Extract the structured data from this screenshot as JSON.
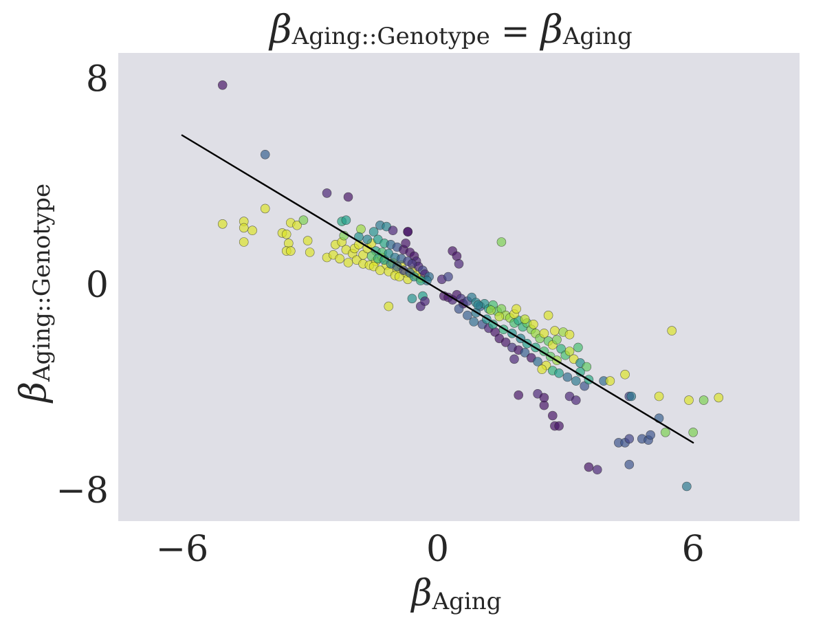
{
  "chart_data": {
    "type": "scatter",
    "title": {
      "lhs_symbol": "β",
      "lhs_sub": "Aging::Genotype",
      "eq": " = ",
      "rhs_symbol": "β",
      "rhs_sub": "Aging"
    },
    "xlabel": {
      "symbol": "β",
      "sub": "Aging"
    },
    "ylabel": {
      "symbol": "β",
      "sub": "Aging::Genotype"
    },
    "xlim": [
      -7.5,
      8.5
    ],
    "ylim": [
      -9.2,
      9.0
    ],
    "xticks": [
      -6,
      0,
      6
    ],
    "yticks": [
      -8,
      0,
      8
    ],
    "xtick_labels": [
      "−6",
      "0",
      "6"
    ],
    "ytick_labels": [
      "−8",
      "0",
      "8"
    ],
    "grid": false,
    "background": "#dfdfe6",
    "colormap": "viridis",
    "fit_line": {
      "x": [
        -6.0,
        6.0
      ],
      "y": [
        5.8,
        -6.15
      ],
      "color": "#000000"
    },
    "points": [
      [
        -5.05,
        7.75,
        0.05
      ],
      [
        -4.05,
        5.05,
        0.3
      ],
      [
        -5.05,
        2.35,
        0.95
      ],
      [
        -4.05,
        2.95,
        0.95
      ],
      [
        -4.55,
        2.45,
        0.95
      ],
      [
        -4.55,
        2.2,
        0.95
      ],
      [
        -4.35,
        2.1,
        0.95
      ],
      [
        -4.55,
        1.65,
        0.95
      ],
      [
        -3.45,
        2.4,
        0.95
      ],
      [
        -3.3,
        2.3,
        0.95
      ],
      [
        -3.15,
        2.5,
        0.8
      ],
      [
        -3.65,
        2.0,
        0.95
      ],
      [
        -3.55,
        1.95,
        0.95
      ],
      [
        -3.5,
        1.6,
        0.95
      ],
      [
        -3.55,
        1.3,
        0.95
      ],
      [
        -3.45,
        1.3,
        0.95
      ],
      [
        -3.05,
        1.7,
        0.95
      ],
      [
        -3.0,
        1.25,
        0.95
      ],
      [
        -2.6,
        1.05,
        0.95
      ],
      [
        -2.45,
        1.15,
        0.95
      ],
      [
        -2.3,
        1.0,
        0.95
      ],
      [
        -2.4,
        1.55,
        0.95
      ],
      [
        -2.25,
        1.65,
        0.95
      ],
      [
        -2.15,
        1.35,
        0.95
      ],
      [
        -2.0,
        1.2,
        0.95
      ],
      [
        -1.95,
        1.4,
        0.95
      ],
      [
        -1.85,
        1.55,
        0.95
      ],
      [
        -2.1,
        0.85,
        0.95
      ],
      [
        -1.9,
        0.95,
        0.95
      ],
      [
        -1.75,
        1.15,
        0.95
      ],
      [
        -1.65,
        1.4,
        0.95
      ],
      [
        -1.55,
        1.6,
        0.95
      ],
      [
        -1.75,
        0.8,
        0.95
      ],
      [
        -1.6,
        0.75,
        0.95
      ],
      [
        -1.45,
        0.9,
        0.95
      ],
      [
        -1.3,
        1.05,
        0.95
      ],
      [
        -1.2,
        0.75,
        0.95
      ],
      [
        -1.05,
        0.85,
        0.95
      ],
      [
        -0.95,
        0.6,
        0.95
      ],
      [
        -0.85,
        0.75,
        0.95
      ],
      [
        -0.75,
        0.45,
        0.95
      ],
      [
        -0.6,
        0.55,
        0.95
      ],
      [
        -0.5,
        0.35,
        0.95
      ],
      [
        -0.4,
        0.25,
        0.95
      ],
      [
        -1.5,
        0.7,
        0.95
      ],
      [
        -1.35,
        0.55,
        0.95
      ],
      [
        -1.15,
        0.5,
        0.95
      ],
      [
        -1.0,
        0.35,
        0.95
      ],
      [
        -0.9,
        0.3,
        0.95
      ],
      [
        -0.7,
        0.2,
        0.95
      ],
      [
        -2.25,
        2.45,
        0.6
      ],
      [
        -1.8,
        2.15,
        0.85
      ],
      [
        -1.5,
        2.05,
        0.5
      ],
      [
        -1.35,
        2.3,
        0.4
      ],
      [
        -1.2,
        2.25,
        0.45
      ],
      [
        -1.05,
        2.1,
        0.1
      ],
      [
        -0.7,
        2.05,
        0.05
      ],
      [
        -2.15,
        2.5,
        0.55
      ],
      [
        -2.2,
        1.9,
        0.8
      ],
      [
        -1.85,
        1.85,
        0.5
      ],
      [
        -1.65,
        1.75,
        0.45
      ],
      [
        -1.4,
        1.75,
        0.55
      ],
      [
        -1.25,
        1.6,
        0.6
      ],
      [
        -1.1,
        1.55,
        0.35
      ],
      [
        -0.95,
        1.45,
        0.25
      ],
      [
        -0.8,
        1.35,
        0.05
      ],
      [
        -0.75,
        1.6,
        0.05
      ],
      [
        -0.65,
        1.25,
        0.05
      ],
      [
        -0.55,
        1.1,
        0.05
      ],
      [
        -0.5,
        0.9,
        0.1
      ],
      [
        -0.45,
        0.7,
        0.1
      ],
      [
        -0.35,
        0.55,
        0.2
      ],
      [
        -0.3,
        0.4,
        0.1
      ],
      [
        -0.2,
        0.3,
        0.35
      ],
      [
        -0.25,
        0.15,
        0.4
      ],
      [
        -1.45,
        1.3,
        0.6
      ],
      [
        -1.3,
        1.25,
        0.7
      ],
      [
        -1.15,
        1.2,
        0.5
      ],
      [
        -1.0,
        1.05,
        0.4
      ],
      [
        -0.85,
        1.0,
        0.3
      ],
      [
        -0.7,
        0.9,
        0.2
      ],
      [
        -0.6,
        0.8,
        0.15
      ],
      [
        -1.55,
        1.1,
        0.75
      ],
      [
        -1.4,
        1.0,
        0.65
      ],
      [
        -1.25,
        0.95,
        0.55
      ],
      [
        -1.1,
        0.8,
        0.45
      ],
      [
        -0.95,
        0.7,
        0.3
      ],
      [
        -0.8,
        0.55,
        0.2
      ],
      [
        -0.65,
        0.45,
        0.3
      ],
      [
        -0.55,
        0.3,
        0.5
      ],
      [
        -0.4,
        0.15,
        0.6
      ],
      [
        -2.6,
        3.55,
        0.1
      ],
      [
        -2.1,
        3.4,
        0.05
      ],
      [
        -0.7,
        2.05,
        0.05
      ],
      [
        -1.15,
        -0.85,
        0.95
      ],
      [
        -0.6,
        -0.55,
        0.5
      ],
      [
        -0.35,
        -0.45,
        0.55
      ],
      [
        -0.4,
        -0.85,
        0.1
      ],
      [
        -0.3,
        -0.65,
        0.1
      ],
      [
        0.1,
        0.2,
        0.1
      ],
      [
        0.25,
        0.3,
        0.2
      ],
      [
        0.35,
        1.3,
        0.05
      ],
      [
        0.45,
        1.1,
        0.05
      ],
      [
        0.5,
        0.8,
        0.1
      ],
      [
        1.5,
        1.65,
        0.8
      ],
      [
        0.15,
        -0.45,
        0.05
      ],
      [
        0.25,
        -0.5,
        0.05
      ],
      [
        0.35,
        -0.6,
        0.1
      ],
      [
        0.45,
        -0.4,
        0.05
      ],
      [
        0.55,
        -0.55,
        0.15
      ],
      [
        0.6,
        -0.75,
        0.05
      ],
      [
        0.7,
        -0.65,
        0.2
      ],
      [
        0.8,
        -0.5,
        0.4
      ],
      [
        0.9,
        -0.7,
        0.45
      ],
      [
        1.0,
        -0.85,
        0.3
      ],
      [
        1.1,
        -0.75,
        0.5
      ],
      [
        1.2,
        -0.95,
        0.55
      ],
      [
        1.3,
        -0.8,
        0.7
      ],
      [
        1.4,
        -1.05,
        0.75
      ],
      [
        1.5,
        -0.95,
        0.8
      ],
      [
        1.6,
        -1.2,
        0.85
      ],
      [
        1.7,
        -1.3,
        0.85
      ],
      [
        1.8,
        -1.5,
        0.7
      ],
      [
        1.9,
        -1.4,
        0.6
      ],
      [
        2.0,
        -1.65,
        0.65
      ],
      [
        2.1,
        -1.5,
        0.75
      ],
      [
        2.2,
        -1.75,
        0.8
      ],
      [
        2.3,
        -1.9,
        0.85
      ],
      [
        2.4,
        -2.1,
        0.8
      ],
      [
        2.5,
        -1.9,
        0.95
      ],
      [
        2.6,
        -2.2,
        0.75
      ],
      [
        2.7,
        -2.35,
        0.95
      ],
      [
        2.8,
        -2.15,
        0.8
      ],
      [
        2.9,
        -2.5,
        0.65
      ],
      [
        3.0,
        -2.75,
        0.7
      ],
      [
        3.1,
        -2.6,
        0.9
      ],
      [
        3.2,
        -2.9,
        0.95
      ],
      [
        3.35,
        -3.05,
        0.5
      ],
      [
        3.5,
        -3.2,
        0.75
      ],
      [
        0.5,
        -0.95,
        0.25
      ],
      [
        0.7,
        -1.2,
        0.3
      ],
      [
        0.85,
        -1.45,
        0.35
      ],
      [
        1.05,
        -1.55,
        0.25
      ],
      [
        1.2,
        -1.7,
        0.1
      ],
      [
        1.35,
        -1.85,
        0.05
      ],
      [
        1.45,
        -2.1,
        0.05
      ],
      [
        1.6,
        -2.25,
        0.05
      ],
      [
        1.75,
        -2.45,
        0.15
      ],
      [
        1.9,
        -2.55,
        0.05
      ],
      [
        2.05,
        -2.65,
        0.3
      ],
      [
        2.2,
        -2.85,
        0.05
      ],
      [
        2.35,
        -3.0,
        0.35
      ],
      [
        2.55,
        -3.15,
        0.95
      ],
      [
        2.7,
        -3.35,
        0.65
      ],
      [
        2.85,
        -3.45,
        0.55
      ],
      [
        3.05,
        -3.6,
        0.35
      ],
      [
        3.25,
        -3.75,
        0.4
      ],
      [
        3.45,
        -3.95,
        0.25
      ],
      [
        0.9,
        -1.1,
        0.4
      ],
      [
        1.15,
        -1.35,
        0.5
      ],
      [
        1.3,
        -1.55,
        0.6
      ],
      [
        1.55,
        -1.75,
        0.65
      ],
      [
        1.75,
        -1.9,
        0.5
      ],
      [
        1.95,
        -2.1,
        0.45
      ],
      [
        2.1,
        -2.3,
        0.55
      ],
      [
        2.3,
        -2.45,
        0.6
      ],
      [
        2.5,
        -2.6,
        0.7
      ],
      [
        2.65,
        -2.8,
        0.75
      ],
      [
        2.8,
        -2.95,
        0.85
      ],
      [
        0.95,
        -0.8,
        0.45
      ],
      [
        1.25,
        -1.0,
        0.85
      ],
      [
        1.45,
        -1.25,
        0.9
      ],
      [
        1.8,
        -1.15,
        0.95
      ],
      [
        2.05,
        -1.35,
        0.9
      ],
      [
        2.25,
        -1.55,
        0.95
      ],
      [
        2.6,
        -1.2,
        0.95
      ],
      [
        2.75,
        -1.8,
        0.95
      ],
      [
        2.95,
        -1.85,
        0.85
      ],
      [
        3.1,
        -1.95,
        0.95
      ],
      [
        3.3,
        -2.45,
        0.7
      ],
      [
        3.35,
        -3.4,
        0.6
      ],
      [
        1.9,
        -4.3,
        0.05
      ],
      [
        2.35,
        -4.25,
        0.1
      ],
      [
        2.5,
        -4.7,
        0.05
      ],
      [
        2.7,
        -5.1,
        0.05
      ],
      [
        2.75,
        -5.5,
        0.05
      ],
      [
        2.85,
        -5.5,
        0.05
      ],
      [
        2.5,
        -4.4,
        0.05
      ],
      [
        3.1,
        -4.35,
        0.1
      ],
      [
        3.25,
        -4.5,
        0.1
      ],
      [
        3.55,
        -3.7,
        0.6
      ],
      [
        3.9,
        -3.75,
        0.35
      ],
      [
        4.05,
        -3.75,
        0.95
      ],
      [
        4.4,
        -3.5,
        0.95
      ],
      [
        4.5,
        -4.35,
        0.2
      ],
      [
        4.55,
        -4.35,
        0.4
      ],
      [
        5.2,
        -4.35,
        0.95
      ],
      [
        5.2,
        -5.2,
        0.3
      ],
      [
        5.35,
        -5.75,
        0.8
      ],
      [
        5.9,
        -4.5,
        0.95
      ],
      [
        6.25,
        -4.5,
        0.8
      ],
      [
        6.6,
        -4.4,
        0.95
      ],
      [
        6.0,
        -5.75,
        0.8
      ],
      [
        4.25,
        -6.15,
        0.25
      ],
      [
        4.4,
        -6.15,
        0.25
      ],
      [
        4.5,
        -6.0,
        0.2
      ],
      [
        4.8,
        -6.0,
        0.25
      ],
      [
        4.95,
        -6.05,
        0.25
      ],
      [
        5.0,
        -5.85,
        0.25
      ],
      [
        3.55,
        -7.1,
        0.05
      ],
      [
        3.75,
        -7.2,
        0.1
      ],
      [
        4.5,
        -7.0,
        0.25
      ],
      [
        5.85,
        -7.85,
        0.4
      ],
      [
        5.5,
        -1.8,
        0.95
      ],
      [
        1.85,
        -0.95,
        0.95
      ],
      [
        1.8,
        -2.9,
        0.1
      ],
      [
        2.45,
        -3.3,
        0.95
      ]
    ]
  }
}
